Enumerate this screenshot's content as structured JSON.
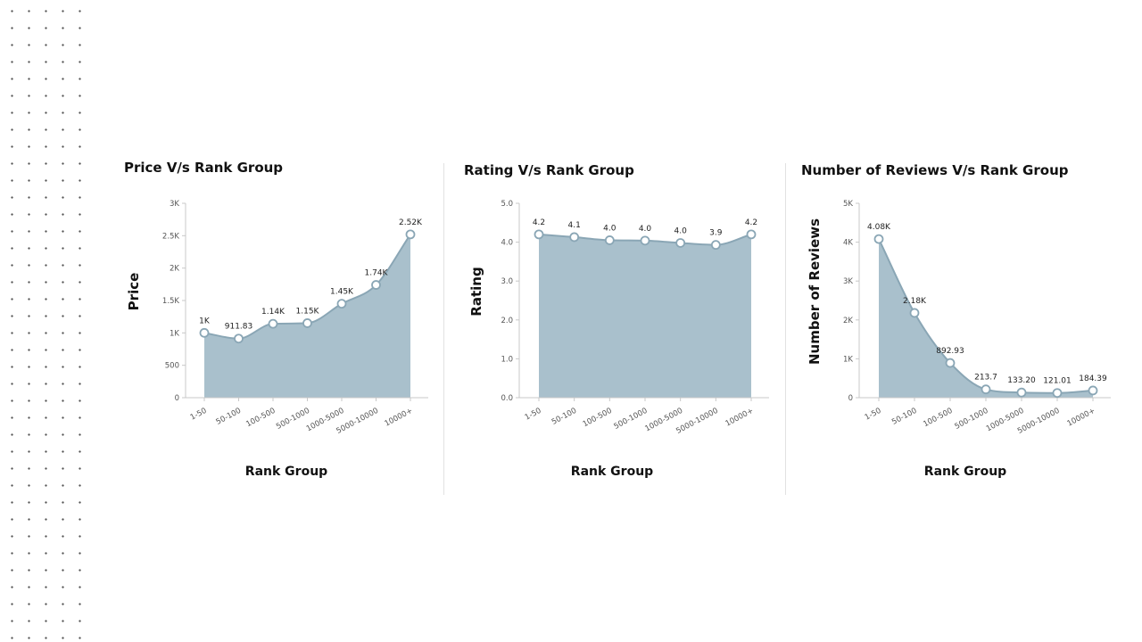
{
  "colors": {
    "area_fill": "#a9c0cc",
    "line": "#8aa6b5",
    "point_fill": "#ffffff",
    "axis": "#c8c8c8",
    "text": "#111111"
  },
  "chart_data": [
    {
      "type": "area",
      "title": "Price V/s Rank Group",
      "xlabel": "Rank Group",
      "ylabel": "Price",
      "categories": [
        "1-50",
        "50-100",
        "100-500",
        "500-1000",
        "1000-5000",
        "5000-10000",
        "10000+"
      ],
      "values": [
        1000,
        911.83,
        1140,
        1150,
        1450,
        1740,
        2520
      ],
      "value_labels": [
        "1K",
        "911.83",
        "1.14K",
        "1.15K",
        "1.45K",
        "1.74K",
        "2.52K"
      ],
      "ylim": [
        0,
        3000
      ],
      "yticks": [
        0,
        500,
        1000,
        1500,
        2000,
        2500,
        3000
      ],
      "ytick_labels": [
        "0",
        "500",
        "1K",
        "1.5K",
        "2K",
        "2.5K",
        "3K"
      ],
      "grid": false
    },
    {
      "type": "area",
      "title": "Rating V/s Rank Group",
      "xlabel": "Rank Group",
      "ylabel": "Rating",
      "categories": [
        "1-50",
        "50-100",
        "100-500",
        "500-1000",
        "1000-5000",
        "5000-10000",
        "10000+"
      ],
      "values": [
        4.2,
        4.13,
        4.05,
        4.04,
        3.98,
        3.93,
        4.2
      ],
      "value_labels": [
        "4.2",
        "4.1",
        "4.0",
        "4.0",
        "4.0",
        "3.9",
        "4.2"
      ],
      "ylim": [
        0,
        5
      ],
      "yticks": [
        0,
        1,
        2,
        3,
        4,
        5
      ],
      "ytick_labels": [
        "0.0",
        "1.0",
        "2.0",
        "3.0",
        "4.0",
        "5.0"
      ],
      "grid": false
    },
    {
      "type": "area",
      "title": "Number of Reviews V/s Rank Group",
      "xlabel": "Rank Group",
      "ylabel": "Number of Reviews",
      "categories": [
        "1-50",
        "50-100",
        "100-500",
        "500-1000",
        "1000-5000",
        "5000-10000",
        "10000+"
      ],
      "values": [
        4080,
        2180,
        892.93,
        213.7,
        133.2,
        121.01,
        184.39
      ],
      "value_labels": [
        "4.08K",
        "2.18K",
        "892.93",
        "213.7",
        "133.20",
        "121.01",
        "184.39"
      ],
      "ylim": [
        0,
        5000
      ],
      "yticks": [
        0,
        1000,
        2000,
        3000,
        4000,
        5000
      ],
      "ytick_labels": [
        "0",
        "1K",
        "2K",
        "3K",
        "4K",
        "5K"
      ],
      "grid": false
    }
  ]
}
